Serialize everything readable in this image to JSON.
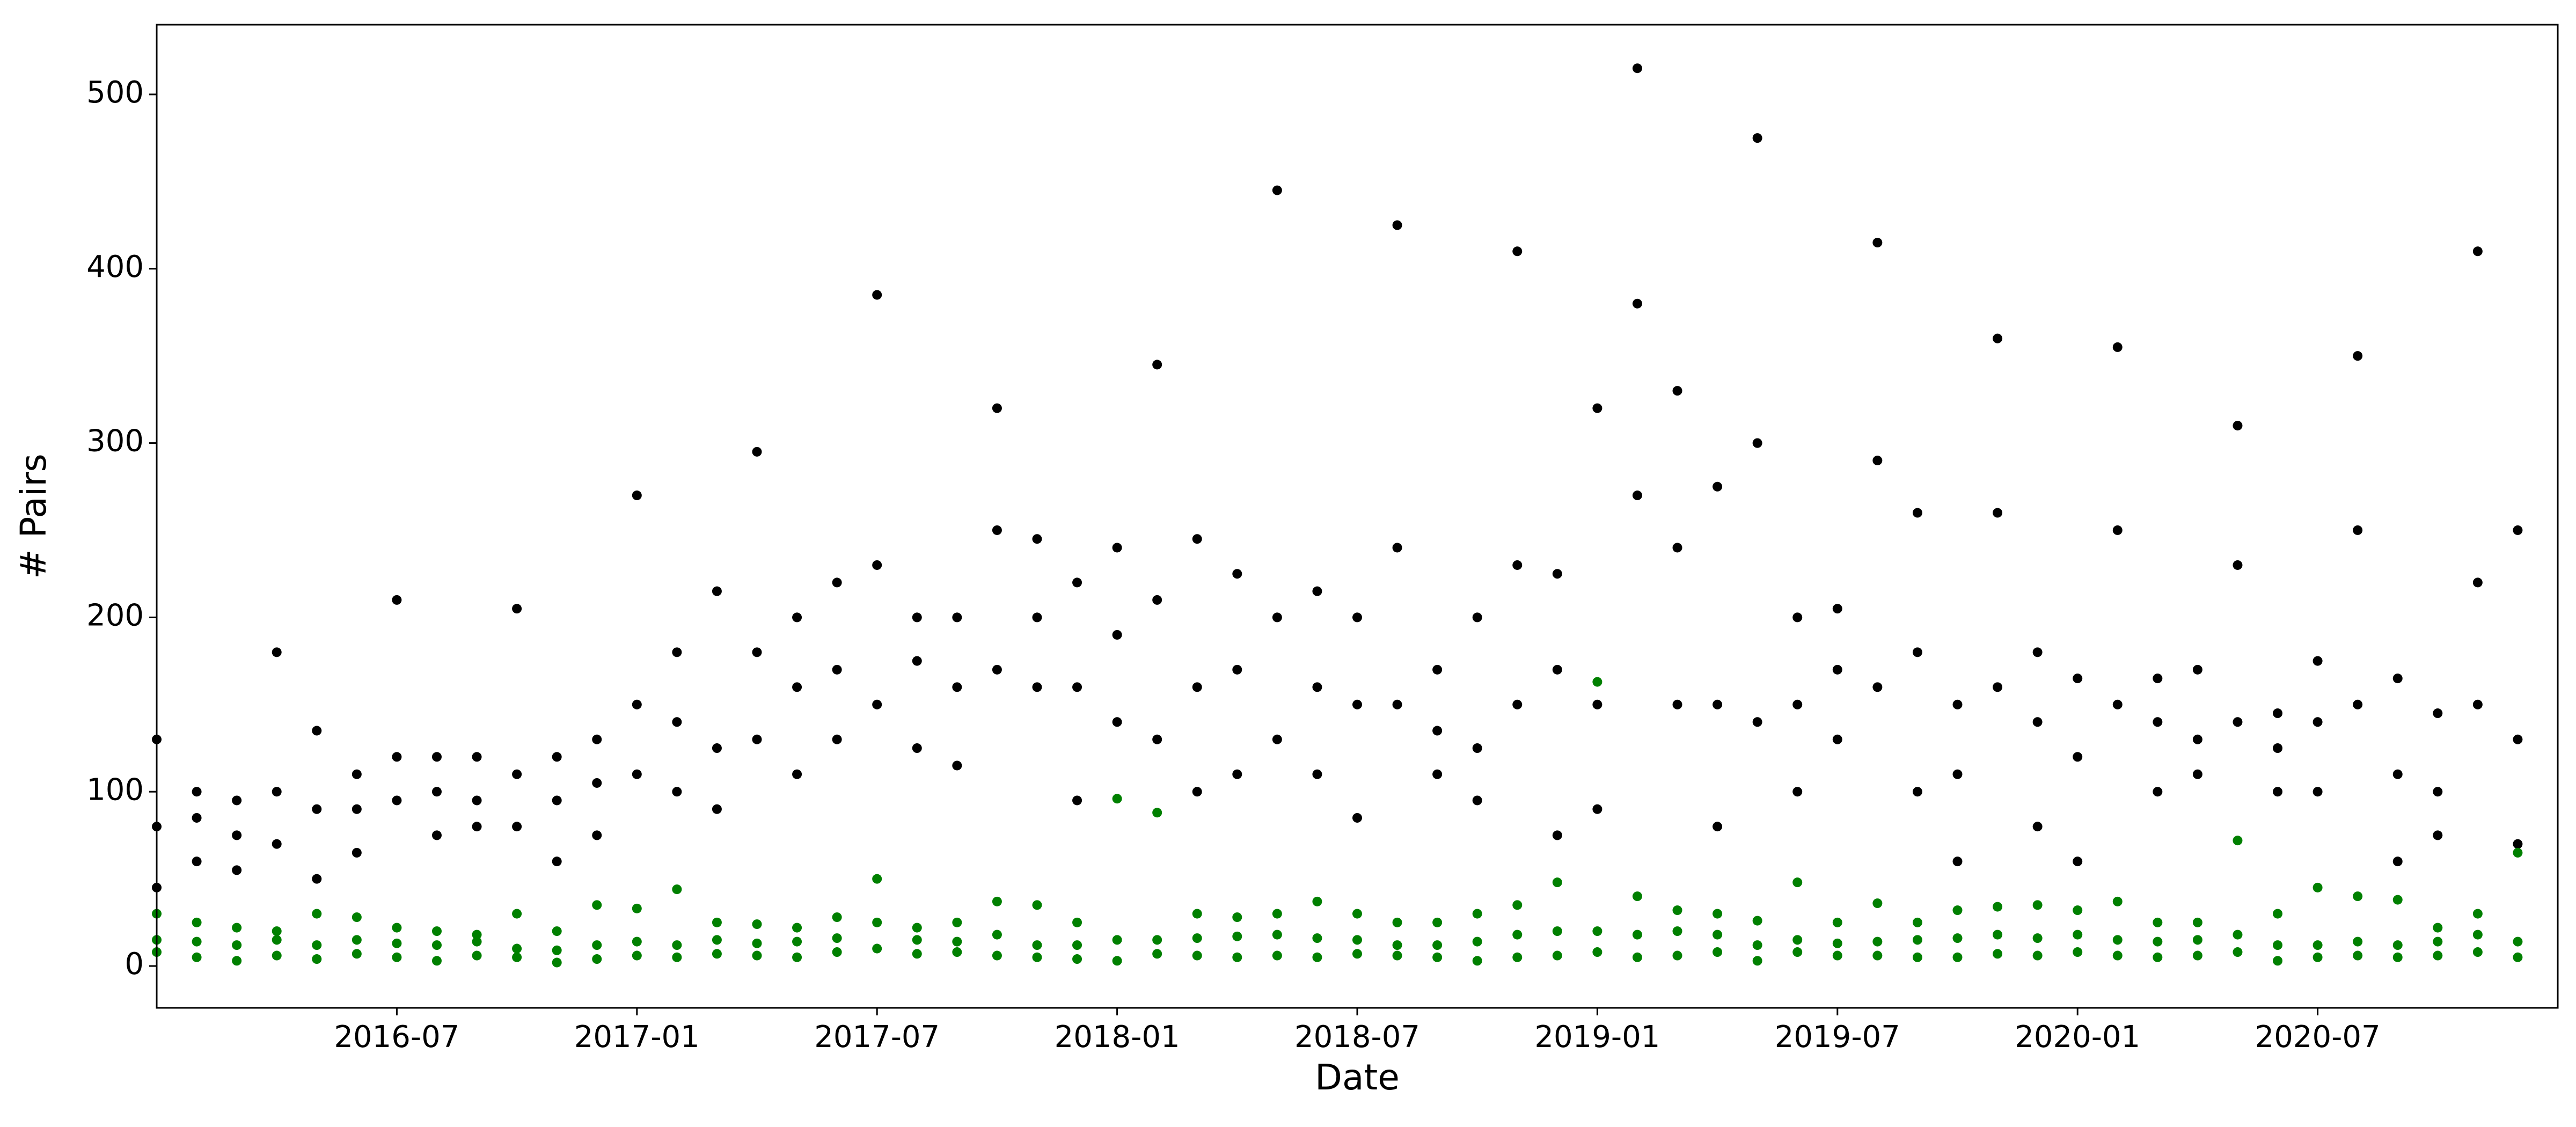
{
  "chart_data": {
    "type": "scatter",
    "x_label": "Date",
    "y_label": "# Pairs",
    "xlim": [
      "2016-01",
      "2021-01"
    ],
    "ylim": [
      -24,
      540
    ],
    "xticks": [
      "2016-07",
      "2017-01",
      "2017-07",
      "2018-01",
      "2018-07",
      "2019-01",
      "2019-07",
      "2020-01",
      "2020-07"
    ],
    "yticks": [
      0,
      100,
      200,
      300,
      400,
      500
    ],
    "x": [
      "2016-01",
      "2016-01",
      "2016-01",
      "2016-02",
      "2016-02",
      "2016-02",
      "2016-03",
      "2016-03",
      "2016-03",
      "2016-04",
      "2016-04",
      "2016-04",
      "2016-05",
      "2016-05",
      "2016-05",
      "2016-06",
      "2016-06",
      "2016-06",
      "2016-07",
      "2016-07",
      "2016-07",
      "2016-08",
      "2016-08",
      "2016-08",
      "2016-09",
      "2016-09",
      "2016-09",
      "2016-10",
      "2016-10",
      "2016-10",
      "2016-11",
      "2016-11",
      "2016-11",
      "2016-12",
      "2016-12",
      "2016-12",
      "2017-01",
      "2017-01",
      "2017-01",
      "2017-02",
      "2017-02",
      "2017-02",
      "2017-03",
      "2017-03",
      "2017-03",
      "2017-04",
      "2017-04",
      "2017-04",
      "2017-05",
      "2017-05",
      "2017-05",
      "2017-06",
      "2017-06",
      "2017-06",
      "2017-07",
      "2017-07",
      "2017-07",
      "2017-08",
      "2017-08",
      "2017-08",
      "2017-09",
      "2017-09",
      "2017-09",
      "2017-10",
      "2017-10",
      "2017-10",
      "2017-11",
      "2017-11",
      "2017-11",
      "2017-12",
      "2017-12",
      "2017-12",
      "2018-01",
      "2018-01",
      "2018-01",
      "2018-02",
      "2018-02",
      "2018-02",
      "2018-03",
      "2018-03",
      "2018-03",
      "2018-04",
      "2018-04",
      "2018-04",
      "2018-05",
      "2018-05",
      "2018-05",
      "2018-06",
      "2018-06",
      "2018-06",
      "2018-07",
      "2018-07",
      "2018-07",
      "2018-08",
      "2018-08",
      "2018-08",
      "2018-09",
      "2018-09",
      "2018-09",
      "2018-10",
      "2018-10",
      "2018-10",
      "2018-11",
      "2018-11",
      "2018-11",
      "2018-12",
      "2018-12",
      "2018-12",
      "2019-01",
      "2019-01",
      "2019-01",
      "2019-02",
      "2019-02",
      "2019-02",
      "2019-03",
      "2019-03",
      "2019-03",
      "2019-04",
      "2019-04",
      "2019-04",
      "2019-05",
      "2019-05",
      "2019-05",
      "2019-06",
      "2019-06",
      "2019-06",
      "2019-07",
      "2019-07",
      "2019-07",
      "2019-08",
      "2019-08",
      "2019-08",
      "2019-09",
      "2019-09",
      "2019-09",
      "2019-10",
      "2019-10",
      "2019-10",
      "2019-11",
      "2019-11",
      "2019-11",
      "2019-12",
      "2019-12",
      "2019-12",
      "2020-01",
      "2020-01",
      "2020-01",
      "2020-02",
      "2020-02",
      "2020-02",
      "2020-03",
      "2020-03",
      "2020-03",
      "2020-04",
      "2020-04",
      "2020-04",
      "2020-05",
      "2020-05",
      "2020-05",
      "2020-06",
      "2020-06",
      "2020-06",
      "2020-07",
      "2020-07",
      "2020-07",
      "2020-08",
      "2020-08",
      "2020-08",
      "2020-09",
      "2020-09",
      "2020-09",
      "2020-10",
      "2020-10",
      "2020-10",
      "2020-11",
      "2020-11",
      "2020-11",
      "2020-12",
      "2020-12",
      "2020-12"
    ],
    "series": [
      {
        "color": "#000000",
        "values": [
          45,
          80,
          130,
          60,
          85,
          100,
          55,
          75,
          95,
          70,
          100,
          180,
          50,
          90,
          135,
          65,
          90,
          110,
          95,
          120,
          210,
          75,
          100,
          120,
          80,
          95,
          120,
          80,
          110,
          205,
          60,
          95,
          120,
          75,
          105,
          130,
          110,
          150,
          270,
          100,
          140,
          180,
          90,
          125,
          215,
          130,
          180,
          295,
          110,
          160,
          200,
          130,
          170,
          220,
          150,
          230,
          385,
          125,
          175,
          200,
          115,
          160,
          200,
          170,
          250,
          320,
          160,
          200,
          245,
          95,
          160,
          220,
          140,
          190,
          240,
          130,
          210,
          345,
          100,
          160,
          245,
          110,
          170,
          225,
          130,
          200,
          445,
          110,
          160,
          215,
          85,
          150,
          200,
          150,
          240,
          425,
          110,
          135,
          170,
          95,
          125,
          200,
          150,
          230,
          410,
          75,
          170,
          225,
          90,
          150,
          320,
          270,
          380,
          515,
          150,
          240,
          330,
          80,
          150,
          275,
          140,
          300,
          475,
          100,
          150,
          200,
          130,
          170,
          205,
          160,
          290,
          415,
          100,
          180,
          260,
          60,
          110,
          150,
          160,
          260,
          360,
          80,
          140,
          180,
          60,
          120,
          165,
          150,
          250,
          355,
          100,
          140,
          165,
          110,
          130,
          170,
          140,
          230,
          310,
          100,
          125,
          145,
          100,
          140,
          175,
          150,
          250,
          350,
          60,
          110,
          165,
          75,
          100,
          145,
          150,
          220,
          410,
          70,
          130,
          250
        ]
      },
      {
        "color": "#008000",
        "values": [
          8,
          15,
          30,
          5,
          14,
          25,
          3,
          12,
          22,
          6,
          15,
          20,
          4,
          12,
          30,
          7,
          15,
          28,
          5,
          13,
          22,
          3,
          12,
          20,
          6,
          14,
          18,
          5,
          10,
          30,
          2,
          9,
          20,
          4,
          12,
          35,
          6,
          14,
          33,
          5,
          12,
          44,
          7,
          15,
          25,
          6,
          13,
          24,
          5,
          14,
          22,
          8,
          16,
          28,
          10,
          25,
          50,
          7,
          15,
          22,
          8,
          14,
          25,
          6,
          18,
          37,
          5,
          12,
          35,
          4,
          12,
          25,
          3,
          15,
          96,
          7,
          15,
          88,
          6,
          16,
          30,
          5,
          17,
          28,
          6,
          18,
          30,
          5,
          16,
          37,
          7,
          15,
          30,
          6,
          12,
          25,
          5,
          12,
          25,
          3,
          14,
          30,
          5,
          18,
          35,
          6,
          20,
          48,
          8,
          20,
          163,
          5,
          18,
          40,
          6,
          20,
          32,
          8,
          18,
          30,
          3,
          12,
          26,
          8,
          15,
          48,
          6,
          13,
          25,
          6,
          14,
          36,
          5,
          15,
          25,
          5,
          16,
          32,
          7,
          18,
          34,
          6,
          16,
          35,
          8,
          18,
          32,
          6,
          15,
          37,
          5,
          14,
          25,
          6,
          15,
          25,
          8,
          18,
          72,
          3,
          12,
          30,
          5,
          12,
          45,
          6,
          14,
          40,
          5,
          12,
          38,
          6,
          14,
          22,
          8,
          18,
          30,
          5,
          14,
          65
        ]
      }
    ]
  }
}
